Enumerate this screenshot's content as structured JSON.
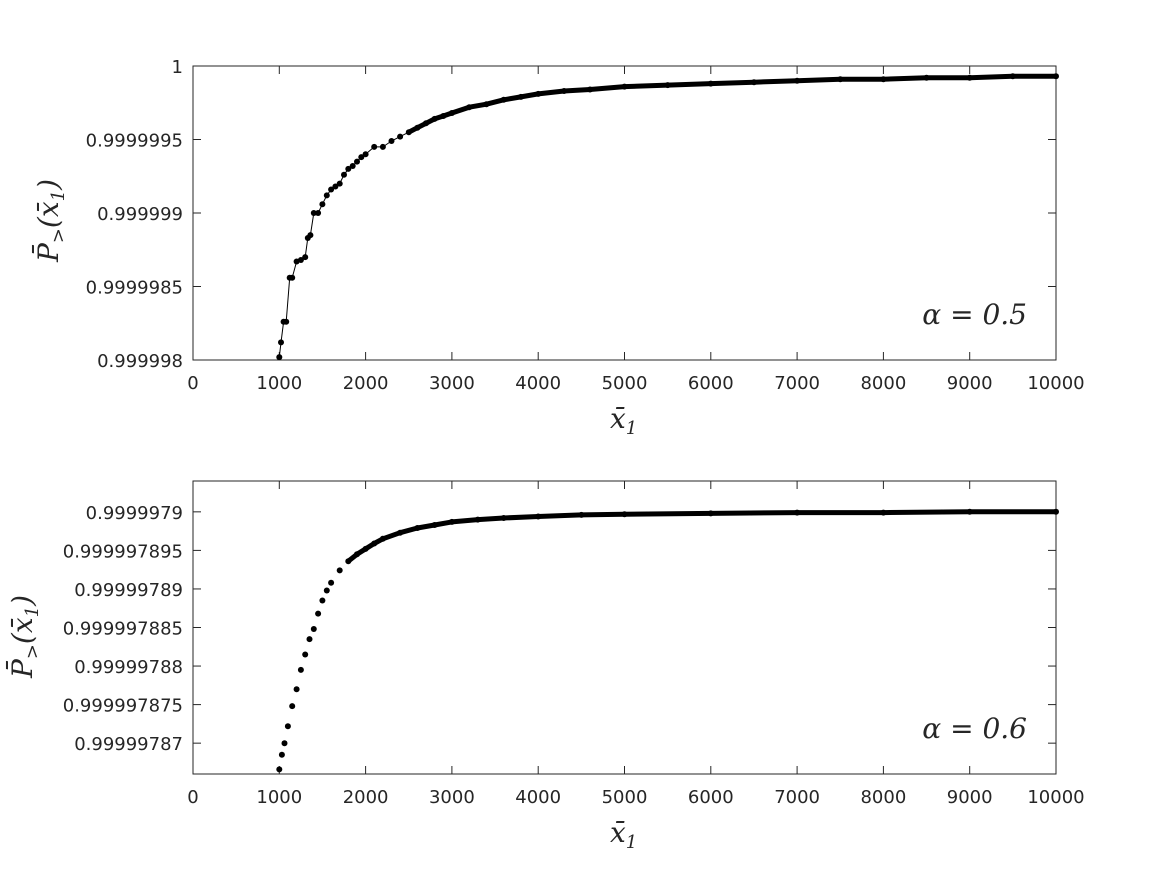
{
  "chart_data": [
    {
      "type": "scatter",
      "annotation": "α = 0.5",
      "xlabel": "x̄",
      "xlabel_sub": "1",
      "ylabel": "P̄",
      "ylabel_sub": ">",
      "ylabel_arg": "(x̄",
      "ylabel_arg_sub": "1",
      "ylabel_close": ")",
      "xlim": [
        0,
        10000
      ],
      "ylim": [
        0.999998,
        1.0
      ],
      "xticks": [
        0,
        1000,
        2000,
        3000,
        4000,
        5000,
        6000,
        7000,
        8000,
        9000,
        10000
      ],
      "xtick_labels": [
        "0",
        "1000",
        "2000",
        "3000",
        "4000",
        "5000",
        "6000",
        "7000",
        "8000",
        "9000",
        "10000"
      ],
      "yticks": [
        0.999998,
        0.9999985,
        0.999999,
        0.9999995,
        1.0
      ],
      "ytick_labels": [
        "0.999998",
        "0.9999985",
        "0.999999",
        "0.9999995",
        "1"
      ],
      "grid": false,
      "fit_curve": {
        "style": "thin-line",
        "x_from": 1000,
        "x_to": 10000
      },
      "points_x": [
        1000,
        1020,
        1050,
        1080,
        1120,
        1150,
        1200,
        1250,
        1300,
        1330,
        1360,
        1400,
        1450,
        1500,
        1550,
        1600,
        1650,
        1700,
        1750,
        1800,
        1850,
        1900,
        1950,
        2000,
        2100,
        2200,
        2300,
        2400,
        2500,
        2600,
        2700,
        2800,
        2900,
        3000,
        3200,
        3400,
        3600,
        3800,
        4000,
        4300,
        4600,
        5000,
        5500,
        6000,
        6500,
        7000,
        7500,
        8000,
        8500,
        9000,
        9500,
        10000
      ],
      "points_y": [
        0.99999802,
        0.99999812,
        0.99999826,
        0.99999826,
        0.99999856,
        0.99999856,
        0.99999867,
        0.99999868,
        0.9999987,
        0.99999883,
        0.99999885,
        0.999999,
        0.999999,
        0.99999906,
        0.99999912,
        0.99999916,
        0.99999918,
        0.9999992,
        0.99999926,
        0.9999993,
        0.99999932,
        0.99999935,
        0.99999938,
        0.9999994,
        0.99999945,
        0.99999945,
        0.99999949,
        0.99999952,
        0.99999955,
        0.99999958,
        0.99999961,
        0.99999964,
        0.99999966,
        0.99999968,
        0.99999972,
        0.99999974,
        0.99999977,
        0.99999979,
        0.99999981,
        0.99999983,
        0.99999984,
        0.99999986,
        0.99999987,
        0.99999988,
        0.99999989,
        0.9999999,
        0.99999991,
        0.99999991,
        0.99999992,
        0.99999992,
        0.99999993,
        0.99999993
      ]
    },
    {
      "type": "scatter",
      "annotation": "α = 0.6",
      "xlabel": "x̄",
      "xlabel_sub": "1",
      "ylabel": "P̄",
      "ylabel_sub": ">",
      "ylabel_arg": "(x̄",
      "ylabel_arg_sub": "1",
      "ylabel_close": ")",
      "xlim": [
        0,
        10000
      ],
      "ylim": [
        0.999997866,
        0.999997904
      ],
      "xticks": [
        0,
        1000,
        2000,
        3000,
        4000,
        5000,
        6000,
        7000,
        8000,
        9000,
        10000
      ],
      "xtick_labels": [
        "0",
        "1000",
        "2000",
        "3000",
        "4000",
        "5000",
        "6000",
        "7000",
        "8000",
        "9000",
        "10000"
      ],
      "yticks": [
        0.99999787,
        0.999997875,
        0.99999788,
        0.999997885,
        0.99999789,
        0.999997895,
        0.9999979
      ],
      "ytick_labels": [
        "0.99999787",
        "0.999997875",
        "0.99999788",
        "0.999997885",
        "0.99999789",
        "0.999997895",
        "0.9999979"
      ],
      "grid": false,
      "points_x": [
        1000,
        1030,
        1060,
        1100,
        1150,
        1200,
        1250,
        1300,
        1350,
        1400,
        1450,
        1500,
        1550,
        1600,
        1700,
        1800,
        1900,
        2000,
        2100,
        2200,
        2400,
        2600,
        2800,
        3000,
        3300,
        3600,
        4000,
        4500,
        5000,
        6000,
        7000,
        8000,
        9000,
        10000
      ],
      "points_y": [
        0.9999978666,
        0.9999978685,
        0.99999787,
        0.9999978722,
        0.9999978748,
        0.999997877,
        0.9999978795,
        0.9999978815,
        0.9999978835,
        0.9999978848,
        0.9999978868,
        0.9999978885,
        0.9999978898,
        0.9999978908,
        0.9999978924,
        0.9999978936,
        0.9999978945,
        0.9999978952,
        0.9999978959,
        0.9999978965,
        0.9999978973,
        0.9999978979,
        0.9999978983,
        0.9999978987,
        0.999997899,
        0.9999978992,
        0.9999978994,
        0.9999978996,
        0.9999978997,
        0.9999978998,
        0.9999978999,
        0.9999978999,
        0.9999979,
        0.9999979
      ]
    }
  ]
}
